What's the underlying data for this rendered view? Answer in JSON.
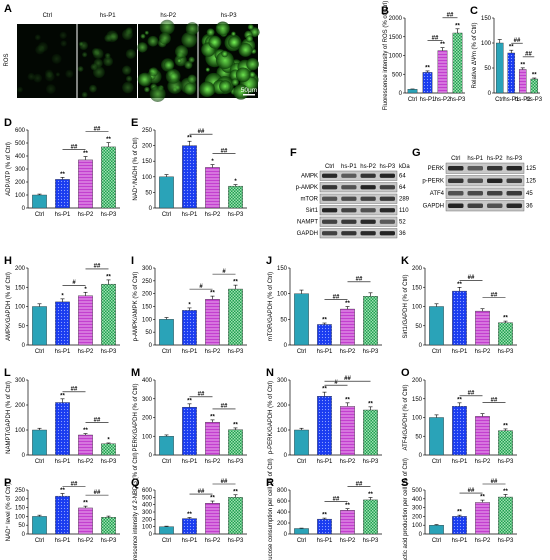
{
  "colors": {
    "Ctrl": "#2aa3b8",
    "hs-P1": "#1a3cf0",
    "hs-P2": "#c33fcf",
    "hs-P3": "#1f9f4f"
  },
  "patterns": {
    "Ctrl": "solid",
    "hs-P1": "dots",
    "hs-P2": "hstripe",
    "hs-P3": "check"
  },
  "panelA": {
    "label": "A",
    "side_label": "ROS",
    "titles": [
      "Ctrl",
      "hs-P1",
      "hs-P2",
      "hs-P3"
    ],
    "intensity": [
      0.05,
      0.25,
      0.6,
      0.85
    ],
    "scalebar": "50μm"
  },
  "blotF": {
    "label": "F",
    "header": [
      "Ctrl",
      "hs-P1",
      "hs-P2",
      "hs-P3"
    ],
    "kda_label": "kDa",
    "rows": [
      {
        "name": "AMPK",
        "kda": "64"
      },
      {
        "name": "p-AMPK",
        "kda": "64"
      },
      {
        "name": "mTOR",
        "kda": "289"
      },
      {
        "name": "Sirt1",
        "kda": "110"
      },
      {
        "name": "NAMPT",
        "kda": "52"
      },
      {
        "name": "GAPDH",
        "kda": "36"
      }
    ]
  },
  "blotG": {
    "label": "G",
    "header": [
      "Ctrl",
      "hs-P1",
      "hs-P2",
      "hs-P3"
    ],
    "rows": [
      {
        "name": "PERK",
        "kda": "125"
      },
      {
        "name": "p-PERK",
        "kda": "125"
      },
      {
        "name": "ATF4",
        "kda": "45"
      },
      {
        "name": "GAPDH",
        "kda": "36"
      }
    ]
  },
  "chart_data": [
    {
      "panel": "B",
      "type": "bar",
      "categories": [
        "Ctrl",
        "hs-P1",
        "hs-P2",
        "hs-P3"
      ],
      "values": [
        100,
        550,
        1130,
        1600
      ],
      "ylabel": "Fluorescence intensity of ROS (% of Ctrl)",
      "ylim": [
        0,
        2000
      ],
      "yticks": [
        0,
        500,
        1000,
        1500,
        2000
      ],
      "stars": [
        "",
        "**",
        "**",
        "**"
      ],
      "brackets": [
        {
          "from": 1,
          "to": 2,
          "label": "##"
        },
        {
          "from": 2,
          "to": 3,
          "label": "##"
        }
      ]
    },
    {
      "panel": "C",
      "type": "bar",
      "categories": [
        "Ctrl",
        "hs-P1",
        "hs-P2",
        "hs-P3"
      ],
      "values": [
        100,
        80,
        47,
        28
      ],
      "ylabel": "Relative ΔΨm (% of Ctrl)",
      "ylim": [
        0,
        150
      ],
      "yticks": [
        0,
        50,
        100,
        150
      ],
      "stars": [
        "",
        "**",
        "**",
        "**"
      ],
      "brackets": [
        {
          "from": 1,
          "to": 2,
          "label": "##"
        },
        {
          "from": 2,
          "to": 3,
          "label": "##"
        }
      ]
    },
    {
      "panel": "D",
      "type": "bar",
      "categories": [
        "Ctrl",
        "hs-P1",
        "hs-P2",
        "hs-P3"
      ],
      "values": [
        100,
        220,
        370,
        470
      ],
      "ylabel": "ADP/ATP (% of Ctrl)",
      "ylim": [
        0,
        600
      ],
      "yticks": [
        0,
        100,
        200,
        300,
        400,
        500,
        600
      ],
      "stars": [
        "",
        "**",
        "**",
        "**"
      ],
      "brackets": [
        {
          "from": 1,
          "to": 2,
          "label": "##"
        },
        {
          "from": 2,
          "to": 3,
          "label": "##"
        }
      ]
    },
    {
      "panel": "E",
      "type": "bar",
      "categories": [
        "Ctrl",
        "hs-P1",
        "hs-P2",
        "hs-P3"
      ],
      "values": [
        100,
        200,
        130,
        70
      ],
      "ylabel": "NAD⁺/NADH (% of Ctrl)",
      "ylim": [
        0,
        250
      ],
      "yticks": [
        0,
        50,
        100,
        150,
        200,
        250
      ],
      "stars": [
        "",
        "**",
        "*",
        "*"
      ],
      "brackets": [
        {
          "from": 1,
          "to": 2,
          "label": "##"
        },
        {
          "from": 2,
          "to": 3,
          "label": "##"
        }
      ]
    },
    {
      "panel": "H",
      "type": "bar",
      "categories": [
        "Ctrl",
        "hs-P1",
        "hs-P2",
        "hs-P3"
      ],
      "values": [
        100,
        112,
        128,
        158
      ],
      "ylabel": "AMPK/GAPDH (% of Ctrl)",
      "ylim": [
        0,
        200
      ],
      "yticks": [
        0,
        50,
        100,
        150,
        200
      ],
      "stars": [
        "",
        "*",
        "*",
        "**"
      ],
      "brackets": [
        {
          "from": 1,
          "to": 2,
          "label": "#"
        },
        {
          "from": 2,
          "to": 3,
          "label": "##"
        }
      ]
    },
    {
      "panel": "I",
      "type": "bar",
      "categories": [
        "Ctrl",
        "hs-P1",
        "hs-P2",
        "hs-P3"
      ],
      "values": [
        100,
        135,
        178,
        218
      ],
      "ylabel": "p-AMPK/AMPK (% of Ctrl)",
      "ylim": [
        0,
        300
      ],
      "yticks": [
        0,
        50,
        100,
        150,
        200,
        250,
        300
      ],
      "stars": [
        "",
        "*",
        "**",
        "**"
      ],
      "brackets": [
        {
          "from": 1,
          "to": 2,
          "label": "#"
        },
        {
          "from": 2,
          "to": 3,
          "label": "#"
        }
      ]
    },
    {
      "panel": "J",
      "type": "bar",
      "categories": [
        "Ctrl",
        "hs-P1",
        "hs-P2",
        "hs-P3"
      ],
      "values": [
        100,
        40,
        70,
        95
      ],
      "ylabel": "mTOR/GAPDH (% of Ctrl)",
      "ylim": [
        0,
        150
      ],
      "yticks": [
        0,
        50,
        100,
        150
      ],
      "stars": [
        "",
        "**",
        "**",
        ""
      ],
      "brackets": [
        {
          "from": 1,
          "to": 2,
          "label": "##"
        },
        {
          "from": 2,
          "to": 3,
          "label": "##"
        }
      ]
    },
    {
      "panel": "K",
      "type": "bar",
      "categories": [
        "Ctrl",
        "hs-P1",
        "hs-P2",
        "hs-P3"
      ],
      "values": [
        100,
        140,
        88,
        58
      ],
      "ylabel": "Sirt1/GAPDH (% of Ctrl)",
      "ylim": [
        0,
        200
      ],
      "yticks": [
        0,
        50,
        100,
        150,
        200
      ],
      "stars": [
        "",
        "**",
        "",
        "**"
      ],
      "brackets": [
        {
          "from": 1,
          "to": 2,
          "label": "##"
        },
        {
          "from": 2,
          "to": 3,
          "label": "##"
        }
      ]
    },
    {
      "panel": "L",
      "type": "bar",
      "categories": [
        "Ctrl",
        "hs-P1",
        "hs-P2",
        "hs-P3"
      ],
      "values": [
        100,
        210,
        80,
        45
      ],
      "ylabel": "NAMPT/GAPDH (% of Ctrl)",
      "ylim": [
        0,
        300
      ],
      "yticks": [
        0,
        100,
        200,
        300
      ],
      "stars": [
        "",
        "**",
        "**",
        "*"
      ],
      "brackets": [
        {
          "from": 1,
          "to": 2,
          "label": "##"
        },
        {
          "from": 2,
          "to": 3,
          "label": "##"
        }
      ]
    },
    {
      "panel": "M",
      "type": "bar",
      "categories": [
        "Ctrl",
        "hs-P1",
        "hs-P2",
        "hs-P3"
      ],
      "values": [
        100,
        255,
        175,
        135
      ],
      "ylabel": "PERK/GAPDH (% of Ctrl)",
      "ylim": [
        0,
        400
      ],
      "yticks": [
        0,
        100,
        200,
        300,
        400
      ],
      "stars": [
        "",
        "**",
        "**",
        "**"
      ],
      "brackets": [
        {
          "from": 1,
          "to": 2,
          "label": "##"
        },
        {
          "from": 2,
          "to": 3,
          "label": "##"
        }
      ]
    },
    {
      "panel": "N",
      "type": "bar",
      "categories": [
        "Ctrl",
        "hs-P1",
        "hs-P2",
        "hs-P3"
      ],
      "values": [
        100,
        235,
        195,
        180
      ],
      "ylabel": "p-PERK/GAPDH (% of Ctrl)",
      "ylim": [
        0,
        300
      ],
      "yticks": [
        0,
        100,
        200,
        300
      ],
      "stars": [
        "",
        "**",
        "**",
        "**"
      ],
      "brackets": [
        {
          "from": 1,
          "to": 2,
          "label": "#"
        },
        {
          "from": 1,
          "to": 3,
          "label": "##"
        }
      ]
    },
    {
      "panel": "O",
      "type": "bar",
      "categories": [
        "Ctrl",
        "hs-P1",
        "hs-P2",
        "hs-P3"
      ],
      "values": [
        100,
        130,
        103,
        65
      ],
      "ylabel": "ATF4/GAPDH (% of Ctrl)",
      "ylim": [
        0,
        200
      ],
      "yticks": [
        0,
        50,
        100,
        150,
        200
      ],
      "stars": [
        "",
        "**",
        "",
        "**"
      ],
      "brackets": [
        {
          "from": 1,
          "to": 2,
          "label": "##"
        },
        {
          "from": 2,
          "to": 3,
          "label": "##"
        }
      ]
    },
    {
      "panel": "P",
      "type": "bar",
      "categories": [
        "Ctrl",
        "hs-P1",
        "hs-P2",
        "hs-P3"
      ],
      "tick_texts": [
        "Ctrl",
        "hs-P1",
        "hs-P2",
        "hs-P3"
      ],
      "values": [
        100,
        215,
        148,
        95
      ],
      "ylabel": "NAD⁺ level (% of Ctrl)",
      "ylim": [
        0,
        250
      ],
      "yticks": [
        0,
        50,
        100,
        150,
        200,
        250
      ],
      "stars": [
        "",
        "**",
        "**",
        ""
      ],
      "brackets": [
        {
          "from": 1,
          "to": 2,
          "label": "##"
        },
        {
          "from": 2,
          "to": 3,
          "label": "##"
        }
      ]
    },
    {
      "panel": "Q",
      "type": "bar",
      "categories": [
        "Ctrl",
        "hs-P1",
        "hs-P2",
        "hs-P3"
      ],
      "values": [
        100,
        210,
        420,
        500
      ],
      "ylabel": "Fluorescence intensity of 2-NBDG (% of Ctrl)",
      "ylim": [
        0,
        600
      ],
      "yticks": [
        0,
        100,
        200,
        300,
        400,
        500,
        600
      ],
      "stars": [
        "",
        "**",
        "**",
        "**"
      ],
      "brackets": [
        {
          "from": 1,
          "to": 2,
          "label": "##"
        },
        {
          "from": 2,
          "to": 3,
          "label": "##"
        }
      ]
    },
    {
      "panel": "R",
      "type": "bar",
      "categories": [
        "Ctrl",
        "hs-P1",
        "hs-P2",
        "hs-P3"
      ],
      "values": [
        100,
        270,
        430,
        620
      ],
      "ylabel": "Glucose consumption per cell (% of Ctrl)",
      "ylim": [
        0,
        800
      ],
      "yticks": [
        0,
        200,
        400,
        600,
        800
      ],
      "stars": [
        "",
        "**",
        "**",
        "**"
      ],
      "brackets": [
        {
          "from": 1,
          "to": 2,
          "label": "##"
        },
        {
          "from": 2,
          "to": 3,
          "label": "##"
        }
      ]
    },
    {
      "panel": "S",
      "type": "bar",
      "categories": [
        "Ctrl",
        "hs-P1",
        "hs-P2",
        "hs-P3"
      ],
      "values": [
        100,
        200,
        360,
        420
      ],
      "ylabel": "Lactic acid production per cell (% of Ctrl)",
      "ylim": [
        0,
        500
      ],
      "yticks": [
        0,
        100,
        200,
        300,
        400,
        500
      ],
      "stars": [
        "",
        "**",
        "**",
        "**"
      ],
      "brackets": [
        {
          "from": 1,
          "to": 2,
          "label": "##"
        },
        {
          "from": 2,
          "to": 3,
          "label": "##"
        }
      ]
    }
  ]
}
